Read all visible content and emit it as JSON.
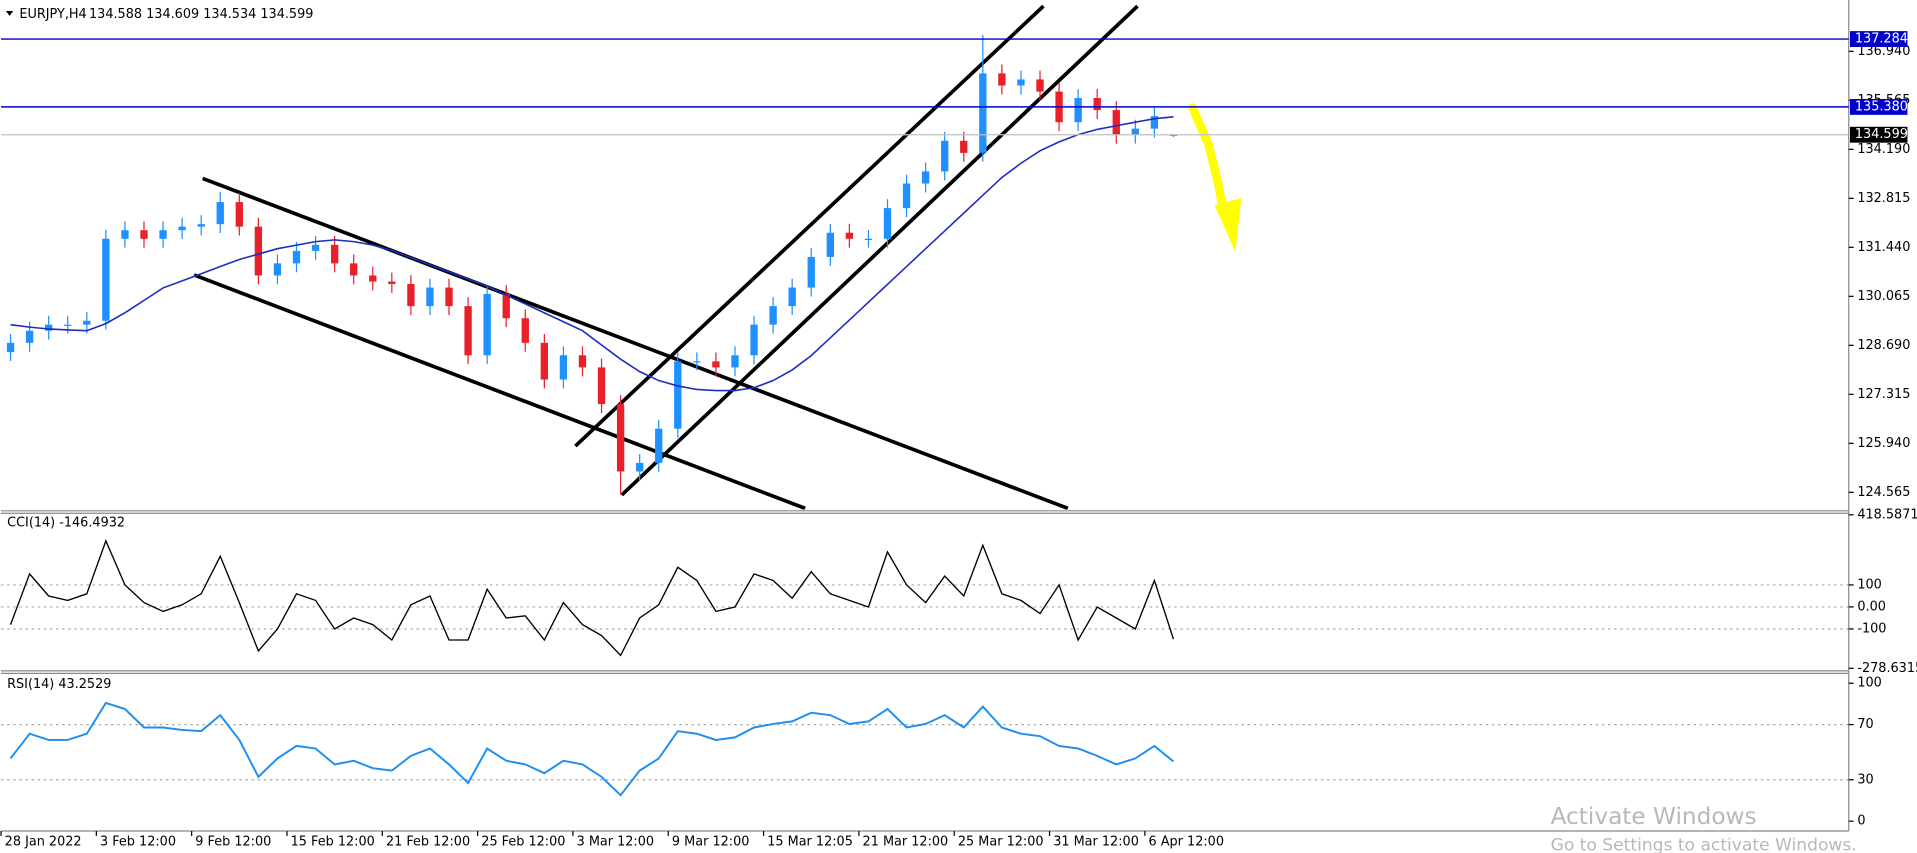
{
  "chart_data": [
    {
      "type": "candlestick",
      "title": "EURJPY,H4",
      "subtitle": "134.588 134.609 134.534 134.599",
      "categories": [
        "28 Jan 2022",
        null,
        null,
        null,
        null,
        "3 Feb 12:00",
        null,
        null,
        null,
        null,
        "9 Feb 12:00",
        null,
        null,
        null,
        null,
        "15 Feb 12:00",
        null,
        null,
        null,
        null,
        "21 Feb 12:00",
        null,
        null,
        null,
        null,
        "25 Feb 12:00",
        null,
        null,
        null,
        null,
        "3 Mar 12:00",
        null,
        null,
        null,
        null,
        "9 Mar 12:00",
        null,
        null,
        null,
        null,
        "15 Mar 12:05",
        null,
        null,
        null,
        null,
        "21 Mar 12:00",
        null,
        null,
        null,
        null,
        "25 Mar 12:00",
        null,
        null,
        null,
        null,
        "31 Mar 12:00",
        null,
        null,
        null,
        null,
        "6 Apr 12:00",
        null
      ],
      "open": [
        128.5,
        128.76,
        129.1,
        129.27,
        129.27,
        129.38,
        131.68,
        131.92,
        131.68,
        131.92,
        132.02,
        132.09,
        132.71,
        132.02,
        130.65,
        130.99,
        131.34,
        131.51,
        130.99,
        130.65,
        130.48,
        130.41,
        129.79,
        130.31,
        129.79,
        128.41,
        130.13,
        129.45,
        128.76,
        127.73,
        128.41,
        128.07,
        127.04,
        125.15,
        125.39,
        126.35,
        128.24,
        128.24,
        128.07,
        128.41,
        129.27,
        129.79,
        130.31,
        131.17,
        131.85,
        131.68,
        131.68,
        132.54,
        133.23,
        133.57,
        134.43,
        134.09,
        136.32,
        135.98,
        136.15,
        135.81,
        134.95,
        135.63,
        135.29,
        134.6,
        134.77,
        134.588
      ],
      "high": [
        129.01,
        129.35,
        129.52,
        129.52,
        129.63,
        131.93,
        132.17,
        132.17,
        132.17,
        132.27,
        132.34,
        133.0,
        132.96,
        132.27,
        131.24,
        131.59,
        131.76,
        131.76,
        131.24,
        130.9,
        130.73,
        130.66,
        130.56,
        130.56,
        130.04,
        130.38,
        130.38,
        129.7,
        129.01,
        128.66,
        128.66,
        128.32,
        127.29,
        125.64,
        126.6,
        128.49,
        128.49,
        128.49,
        128.66,
        129.52,
        130.04,
        130.56,
        131.42,
        132.1,
        132.1,
        131.93,
        132.79,
        133.48,
        133.82,
        134.68,
        134.68,
        137.4,
        136.57,
        136.4,
        136.4,
        136.06,
        135.88,
        135.88,
        135.54,
        135.02,
        135.37,
        134.609
      ],
      "low": [
        128.25,
        128.51,
        128.85,
        129.02,
        129.02,
        129.13,
        131.43,
        131.43,
        131.43,
        131.67,
        131.77,
        131.84,
        131.77,
        130.4,
        130.4,
        130.74,
        131.09,
        130.74,
        130.4,
        130.23,
        130.16,
        129.54,
        129.54,
        129.54,
        128.16,
        128.16,
        129.2,
        128.51,
        127.48,
        127.48,
        127.82,
        126.79,
        124.5,
        124.9,
        125.14,
        126.1,
        127.99,
        127.82,
        127.82,
        128.16,
        129.02,
        129.54,
        130.06,
        130.92,
        131.43,
        131.43,
        131.43,
        132.29,
        132.98,
        133.32,
        133.84,
        133.84,
        135.73,
        135.73,
        135.56,
        134.7,
        134.7,
        135.04,
        134.35,
        134.35,
        134.52,
        134.534
      ],
      "close": [
        128.76,
        129.1,
        129.27,
        129.27,
        129.38,
        131.68,
        131.92,
        131.68,
        131.92,
        132.02,
        132.09,
        132.71,
        132.02,
        130.65,
        130.99,
        131.34,
        131.51,
        130.99,
        130.65,
        130.48,
        130.41,
        129.79,
        130.31,
        129.79,
        128.41,
        130.13,
        129.45,
        128.76,
        127.73,
        128.41,
        128.07,
        127.04,
        125.15,
        125.39,
        126.35,
        128.24,
        128.24,
        128.07,
        128.41,
        129.27,
        129.79,
        130.31,
        131.17,
        131.85,
        131.68,
        131.68,
        132.54,
        133.23,
        133.57,
        134.43,
        134.09,
        136.32,
        135.98,
        136.15,
        135.81,
        134.95,
        135.63,
        135.29,
        134.6,
        134.77,
        135.12,
        134.599
      ],
      "up_color": "#1e90ff",
      "down_color": "#e8202a",
      "series": [
        {
          "color": "#1c2dc0",
          "values": [
            129.27,
            129.2,
            129.15,
            129.12,
            129.1,
            129.3,
            129.6,
            129.95,
            130.3,
            130.5,
            130.7,
            130.9,
            131.1,
            131.25,
            131.4,
            131.5,
            131.6,
            131.65,
            131.6,
            131.5,
            131.35,
            131.15,
            130.95,
            130.75,
            130.55,
            130.35,
            130.1,
            129.85,
            129.6,
            129.35,
            129.1,
            128.7,
            128.3,
            127.95,
            127.7,
            127.55,
            127.45,
            127.42,
            127.42,
            127.5,
            127.7,
            128.0,
            128.4,
            128.9,
            129.4,
            129.9,
            130.4,
            130.9,
            131.4,
            131.9,
            132.4,
            132.9,
            133.4,
            133.8,
            134.15,
            134.4,
            134.6,
            134.75,
            134.85,
            134.95,
            135.05,
            135.1
          ]
        }
      ],
      "ylim": [
        124.08,
        138.38
      ],
      "yticks": [
        124.565,
        {
          "value": 125.94,
          "label": "125.940"
        },
        127.315,
        {
          "value": 128.69,
          "label": "128.690"
        },
        130.065,
        {
          "value": 131.44,
          "label": "131.440"
        },
        132.815,
        {
          "value": 134.19,
          "label": "134.190"
        },
        135.565,
        {
          "value": 136.94,
          "label": "136.940"
        }
      ],
      "levels": [
        137.284,
        {
          "value": 135.38,
          "label": "135.380"
        }
      ],
      "level_color": "#0000c8",
      "last": 134.599
    },
    {
      "type": "line",
      "title": "CCI(14) -146.4932",
      "color": "#000000",
      "values": [
        -80,
        150,
        50,
        30,
        60,
        300,
        100,
        20,
        -20,
        10,
        60,
        230,
        20,
        -200,
        -100,
        60,
        30,
        -100,
        -50,
        -80,
        -150,
        10,
        50,
        -150,
        -150,
        80,
        -50,
        -40,
        -150,
        20,
        -80,
        -130,
        -220,
        -50,
        10,
        180,
        120,
        -20,
        0,
        150,
        120,
        40,
        160,
        60,
        30,
        0,
        250,
        100,
        20,
        140,
        50,
        280,
        60,
        30,
        -30,
        100,
        -150,
        0,
        -50,
        -100,
        120,
        -146.4932
      ],
      "ylim": [
        -285,
        420
      ],
      "yticks": [
        418.5871,
        100,
        {
          "value": 0,
          "label": "0.00"
        },
        -100,
        -278.6315
      ],
      "levels": [
        100,
        0,
        -100
      ]
    },
    {
      "type": "line",
      "title": "RSI(14) 43.2529",
      "color": "#1e8fef",
      "values": [
        45.5,
        63.4,
        58.9,
        58.9,
        63.4,
        85.7,
        81.3,
        67.9,
        67.9,
        66.1,
        65.2,
        76.8,
        58.9,
        32.1,
        45.5,
        54.5,
        52.7,
        41.1,
        43.8,
        38.4,
        36.6,
        47.3,
        52.7,
        41.1,
        27.7,
        52.7,
        43.8,
        41.1,
        34.8,
        43.8,
        41.1,
        32.1,
        18.8,
        36.6,
        45.5,
        65.2,
        63.4,
        58.9,
        60.7,
        67.9,
        70.5,
        72.3,
        78.6,
        76.8,
        70.5,
        72.3,
        81.3,
        67.9,
        70.5,
        76.8,
        67.9,
        83.0,
        67.9,
        63.4,
        61.6,
        54.5,
        52.7,
        47.3,
        41.1,
        45.5,
        54.5,
        43.2529
      ],
      "ylim": [
        -6.25,
        106.25
      ],
      "yticks": [
        100,
        70,
        30,
        0
      ],
      "levels": [
        70,
        30
      ]
    }
  ],
  "overlay": {
    "line1": "Activate Windows",
    "line2": "Go to Settings to activate Windows."
  }
}
